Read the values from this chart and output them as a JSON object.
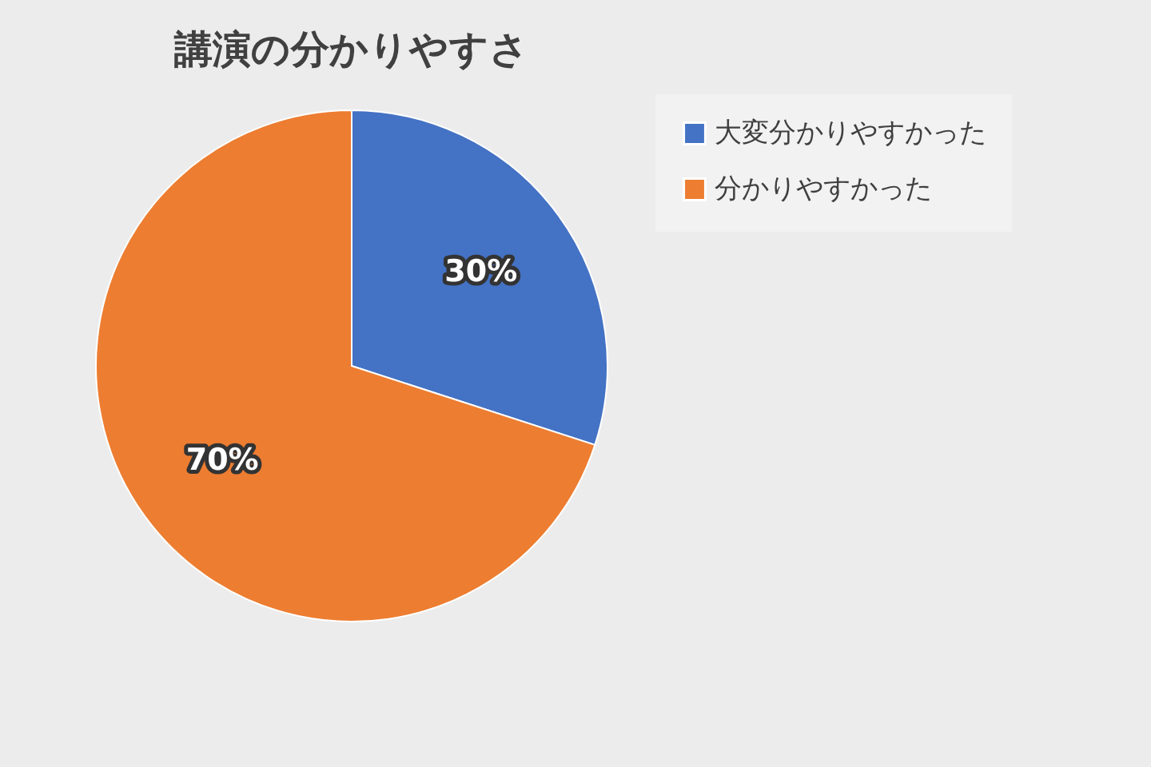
{
  "chart_data": {
    "type": "pie",
    "title": "講演の分かりやすさ",
    "categories": [
      "大変分かりやすかった",
      "分かりやすかった"
    ],
    "values": [
      30,
      70
    ],
    "colors": [
      "#4472c4",
      "#ed7d31"
    ],
    "value_labels": [
      "30%",
      "70%"
    ],
    "legend": "right"
  }
}
